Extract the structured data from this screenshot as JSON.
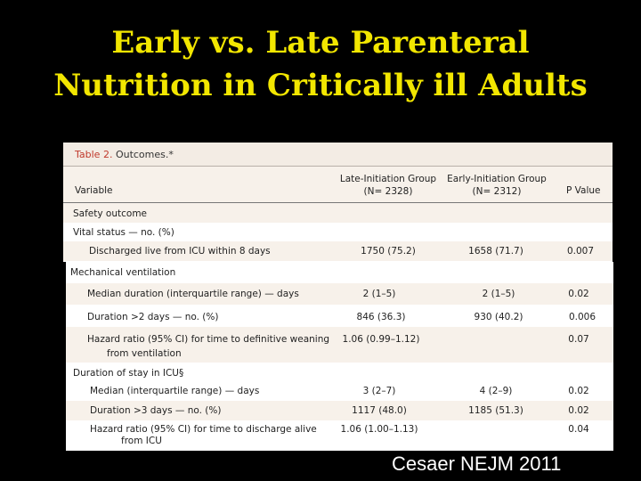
{
  "slide": {
    "title_line1": "Early vs. Late Parenteral",
    "title_line2": "Nutrition in Critically ill Adults",
    "citation": "Cesaer NEJM 2011"
  },
  "table": {
    "caption_prefix": "Table 2.",
    "caption_text": "Outcomes.*",
    "headers": {
      "variable": "Variable",
      "late_line1": "Late-Initiation Group",
      "late_line2": "(N= 2328)",
      "early_line1": "Early-Initiation Group",
      "early_line2": "(N= 2312)",
      "p": "P Value"
    },
    "sections": {
      "safety": "Safety outcome",
      "vital": "Vital status — no. (%)",
      "mech": "Mechanical ventilation",
      "icu": "Duration of stay in ICU§"
    },
    "rows": [
      {
        "label": "Discharged live from ICU within 8 days",
        "late": "1750 (75.2)",
        "early": "1658 (71.7)",
        "p": "0.007"
      },
      {
        "label": "Median duration (interquartile range) — days",
        "late": "2 (1–5)",
        "early": "2 (1–5)",
        "p": "0.02"
      },
      {
        "label": "Duration >2 days — no. (%)",
        "late": "846 (36.3)",
        "early": "930 (40.2)",
        "p": "0.006"
      },
      {
        "label": "Hazard ratio (95% CI) for time to definitive weaning",
        "label2": "from ventilation",
        "late": "1.06 (0.99–1.12)",
        "early": "",
        "p": "0.07"
      },
      {
        "label": "Median (interquartile range) — days",
        "late": "3 (2–7)",
        "early": "4 (2–9)",
        "p": "0.02"
      },
      {
        "label": "Duration >3 days — no. (%)",
        "late": "1117 (48.0)",
        "early": "1185 (51.3)",
        "p": "0.02"
      },
      {
        "label": "Hazard ratio (95% CI) for time to discharge alive",
        "label2": "from ICU",
        "late": "1.06 (1.00–1.13)",
        "early": "",
        "p": "0.04"
      }
    ]
  }
}
